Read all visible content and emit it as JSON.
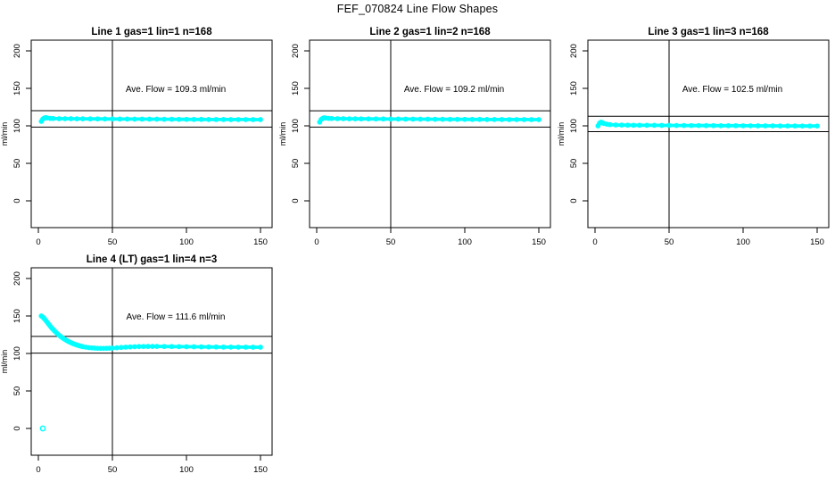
{
  "page_title": "FEF_070824  Line Flow Shapes",
  "colors": {
    "series": "#00FFFF",
    "axis": "#000000",
    "ref_line": "#000000",
    "background": "#FFFFFF",
    "text": "#000000"
  },
  "axes": {
    "ylabel": "ml/min",
    "x_ticks": [
      0,
      50,
      100,
      150
    ],
    "y_ticks": [
      0,
      50,
      100,
      150,
      200
    ],
    "xlim": [
      -5,
      158
    ],
    "ylim": [
      -36,
      214
    ],
    "grid": false,
    "legend": "none"
  },
  "chart_data": [
    {
      "type": "scatter",
      "title": "Line 1 gas=1 lin=1 n=168",
      "annotation": "Ave. Flow =  109.3  ml/min",
      "ave_flow": 109.3,
      "units": "ml/min",
      "n": 168,
      "ref_vline_x": 50,
      "ref_hlines": [
        120.2,
        98.4
      ],
      "outliers": [],
      "points": [
        [
          2,
          106
        ],
        [
          3,
          109
        ],
        [
          4,
          110.5
        ],
        [
          5,
          111
        ],
        [
          6,
          110.5
        ],
        [
          8,
          110
        ],
        [
          10,
          109.8
        ],
        [
          14,
          109.6
        ],
        [
          18,
          109.5
        ],
        [
          22,
          109.5
        ],
        [
          26,
          109.4
        ],
        [
          30,
          109.4
        ],
        [
          35,
          109.3
        ],
        [
          40,
          109.3
        ],
        [
          45,
          109.2
        ],
        [
          50,
          109.2
        ],
        [
          55,
          109.1
        ],
        [
          60,
          109.1
        ],
        [
          65,
          109.0
        ],
        [
          70,
          109.0
        ],
        [
          75,
          108.9
        ],
        [
          80,
          108.9
        ],
        [
          85,
          108.8
        ],
        [
          90,
          108.8
        ],
        [
          95,
          108.7
        ],
        [
          100,
          108.7
        ],
        [
          105,
          108.6
        ],
        [
          110,
          108.6
        ],
        [
          115,
          108.5
        ],
        [
          120,
          108.5
        ],
        [
          125,
          108.5
        ],
        [
          130,
          108.4
        ],
        [
          135,
          108.4
        ],
        [
          140,
          108.4
        ],
        [
          145,
          108.3
        ],
        [
          150,
          108.3
        ]
      ]
    },
    {
      "type": "scatter",
      "title": "Line 2 gas=1 lin=2 n=168",
      "annotation": "Ave. Flow =  109.2  ml/min",
      "ave_flow": 109.2,
      "units": "ml/min",
      "n": 168,
      "ref_vline_x": 50,
      "ref_hlines": [
        120.1,
        98.3
      ],
      "outliers": [],
      "points": [
        [
          2,
          105
        ],
        [
          3,
          108.5
        ],
        [
          4,
          110
        ],
        [
          5,
          110.8
        ],
        [
          6,
          110.4
        ],
        [
          8,
          110
        ],
        [
          10,
          109.8
        ],
        [
          14,
          109.6
        ],
        [
          18,
          109.5
        ],
        [
          22,
          109.4
        ],
        [
          26,
          109.4
        ],
        [
          30,
          109.3
        ],
        [
          35,
          109.3
        ],
        [
          40,
          109.2
        ],
        [
          45,
          109.2
        ],
        [
          50,
          109.1
        ],
        [
          55,
          109.1
        ],
        [
          60,
          109.0
        ],
        [
          65,
          109.0
        ],
        [
          70,
          108.9
        ],
        [
          75,
          108.9
        ],
        [
          80,
          108.8
        ],
        [
          85,
          108.8
        ],
        [
          90,
          108.7
        ],
        [
          95,
          108.7
        ],
        [
          100,
          108.7
        ],
        [
          105,
          108.6
        ],
        [
          110,
          108.6
        ],
        [
          115,
          108.5
        ],
        [
          120,
          108.5
        ],
        [
          125,
          108.5
        ],
        [
          130,
          108.4
        ],
        [
          135,
          108.4
        ],
        [
          140,
          108.4
        ],
        [
          145,
          108.3
        ],
        [
          150,
          108.3
        ]
      ]
    },
    {
      "type": "scatter",
      "title": "Line 3 gas=1 lin=3 n=168",
      "annotation": "Ave. Flow =  102.5  ml/min",
      "ave_flow": 102.5,
      "units": "ml/min",
      "n": 168,
      "ref_vline_x": 50,
      "ref_hlines": [
        112.8,
        92.3
      ],
      "outliers": [],
      "points": [
        [
          2,
          100
        ],
        [
          3,
          103.5
        ],
        [
          4,
          105
        ],
        [
          5,
          104.2
        ],
        [
          6,
          103.2
        ],
        [
          8,
          102.2
        ],
        [
          10,
          101.6
        ],
        [
          14,
          101.2
        ],
        [
          18,
          101.0
        ],
        [
          22,
          100.9
        ],
        [
          26,
          100.8
        ],
        [
          30,
          100.8
        ],
        [
          35,
          100.7
        ],
        [
          40,
          100.7
        ],
        [
          45,
          100.6
        ],
        [
          50,
          100.6
        ],
        [
          55,
          100.5
        ],
        [
          60,
          100.5
        ],
        [
          65,
          100.4
        ],
        [
          70,
          100.4
        ],
        [
          75,
          100.3
        ],
        [
          80,
          100.3
        ],
        [
          85,
          100.2
        ],
        [
          90,
          100.2
        ],
        [
          95,
          100.2
        ],
        [
          100,
          100.1
        ],
        [
          105,
          100.1
        ],
        [
          110,
          100.0
        ],
        [
          115,
          100.0
        ],
        [
          120,
          100.0
        ],
        [
          125,
          99.9
        ],
        [
          130,
          99.9
        ],
        [
          135,
          99.9
        ],
        [
          140,
          99.8
        ],
        [
          145,
          99.8
        ],
        [
          150,
          99.8
        ]
      ]
    },
    {
      "type": "scatter",
      "title": "Line 4 (LT) gas=1 lin=4 n=3",
      "annotation": "Ave. Flow =  111.6  ml/min",
      "ave_flow": 111.6,
      "units": "ml/min",
      "n": 3,
      "ref_vline_x": 50,
      "ref_hlines": [
        122.8,
        100.4
      ],
      "outliers": [
        [
          3,
          0
        ]
      ],
      "points": [
        [
          2,
          150
        ],
        [
          3,
          148.5
        ],
        [
          4,
          146.5
        ],
        [
          5,
          144
        ],
        [
          6,
          141.5
        ],
        [
          7,
          139
        ],
        [
          8,
          136.5
        ],
        [
          9,
          134
        ],
        [
          10,
          132
        ],
        [
          11,
          130
        ],
        [
          12,
          128
        ],
        [
          13,
          126
        ],
        [
          14,
          124.3
        ],
        [
          15,
          122.8
        ],
        [
          16,
          121.3
        ],
        [
          17,
          120
        ],
        [
          18,
          118.7
        ],
        [
          19,
          117.5
        ],
        [
          20,
          116.4
        ],
        [
          21,
          115.4
        ],
        [
          22,
          114.4
        ],
        [
          23,
          113.5
        ],
        [
          24,
          112.7
        ],
        [
          25,
          112
        ],
        [
          26,
          111.3
        ],
        [
          27,
          110.7
        ],
        [
          28,
          110.1
        ],
        [
          29,
          109.6
        ],
        [
          30,
          109.1
        ],
        [
          32,
          108.4
        ],
        [
          34,
          107.8
        ],
        [
          36,
          107.4
        ],
        [
          38,
          107.1
        ],
        [
          40,
          106.9
        ],
        [
          42,
          106.8
        ],
        [
          44,
          106.8
        ],
        [
          46,
          106.9
        ],
        [
          48,
          107
        ],
        [
          50,
          107.2
        ],
        [
          53,
          107.6
        ],
        [
          56,
          108
        ],
        [
          59,
          108.4
        ],
        [
          62,
          108.7
        ],
        [
          65,
          109
        ],
        [
          68,
          109.2
        ],
        [
          71,
          109.3
        ],
        [
          74,
          109.4
        ],
        [
          77,
          109.4
        ],
        [
          80,
          109.4
        ],
        [
          85,
          109.3
        ],
        [
          90,
          109.2
        ],
        [
          95,
          109.1
        ],
        [
          100,
          109
        ],
        [
          105,
          108.9
        ],
        [
          110,
          108.8
        ],
        [
          115,
          108.7
        ],
        [
          120,
          108.6
        ],
        [
          125,
          108.5
        ],
        [
          130,
          108.5
        ],
        [
          135,
          108.4
        ],
        [
          140,
          108.4
        ],
        [
          145,
          108.3
        ],
        [
          150,
          108.3
        ]
      ]
    }
  ]
}
